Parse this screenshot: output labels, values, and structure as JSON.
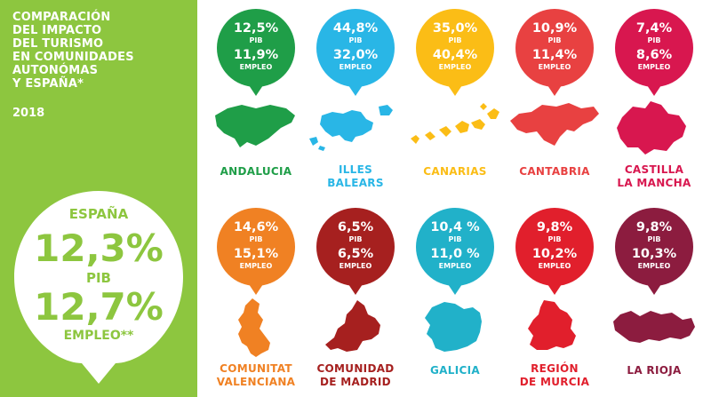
{
  "title": "COMPARACIÓN\nDEL IMPACTO\nDEL TURISMO\nEN COMUNIDADES\nAUTONÓMAS\nY ESPAÑA*",
  "year": "2018",
  "spain": {
    "name": "ESPAÑA",
    "pib": "12,3%",
    "pib_label": "PIB",
    "empleo": "12,7%",
    "empleo_label": "EMPLEO**",
    "color": "#8dc63f"
  },
  "chart_data": {
    "type": "table",
    "columns": [
      "PIB",
      "EMPLEO"
    ],
    "unit": "%",
    "rows": [
      {
        "region": "ANDALUCIA",
        "pib": "12,5%",
        "empleo": "11,9%",
        "pib_value": 12.5,
        "empleo_value": 11.9,
        "color": "#1f9e48",
        "map_icon": "andalucia-map"
      },
      {
        "region": "ILLES\nBALEARS",
        "pib": "44,8%",
        "empleo": "32,0%",
        "pib_value": 44.8,
        "empleo_value": 32.0,
        "color": "#29b6e6",
        "map_icon": "illes-balears-map"
      },
      {
        "region": "CANARIAS",
        "pib": "35,0%",
        "empleo": "40,4%",
        "pib_value": 35.0,
        "empleo_value": 40.4,
        "color": "#fbbd16",
        "map_icon": "canarias-map"
      },
      {
        "region": "CANTABRIA",
        "pib": "10,9%",
        "empleo": "11,4%",
        "pib_value": 10.9,
        "empleo_value": 11.4,
        "color": "#e84141",
        "map_icon": "cantabria-map"
      },
      {
        "region": "CASTILLA\nLA MANCHA",
        "pib": "7,4%",
        "empleo": "8,6%",
        "pib_value": 7.4,
        "empleo_value": 8.6,
        "color": "#d8174f",
        "map_icon": "castilla-la-mancha-map"
      },
      {
        "region": "COMUNITAT\nVALENCIANA",
        "pib": "14,6%",
        "empleo": "15,1%",
        "pib_value": 14.6,
        "empleo_value": 15.1,
        "color": "#f08123",
        "map_icon": "comunitat-valenciana-map"
      },
      {
        "region": "COMUNIDAD\nDE MADRID",
        "pib": "6,5%",
        "empleo": "6,5%",
        "pib_value": 6.5,
        "empleo_value": 6.5,
        "color": "#a6201f",
        "map_icon": "comunidad-de-madrid-map"
      },
      {
        "region": "GALICIA",
        "pib": "10,4 %",
        "empleo": "11,0 %",
        "pib_value": 10.4,
        "empleo_value": 11.0,
        "color": "#21b1c9",
        "map_icon": "galicia-map"
      },
      {
        "region": "REGIÓN\nDE MURCIA",
        "pib": "9,8%",
        "empleo": "10,2%",
        "pib_value": 9.8,
        "empleo_value": 10.2,
        "color": "#e11f2c",
        "map_icon": "region-de-murcia-map"
      },
      {
        "region": "LA RIOJA",
        "pib": "9,8%",
        "empleo": "10,3%",
        "pib_value": 9.8,
        "empleo_value": 10.3,
        "color": "#8c1c3f",
        "map_icon": "la-rioja-map"
      }
    ],
    "row_labels": {
      "pib": "PIB",
      "empleo": "EMPLEO"
    }
  }
}
